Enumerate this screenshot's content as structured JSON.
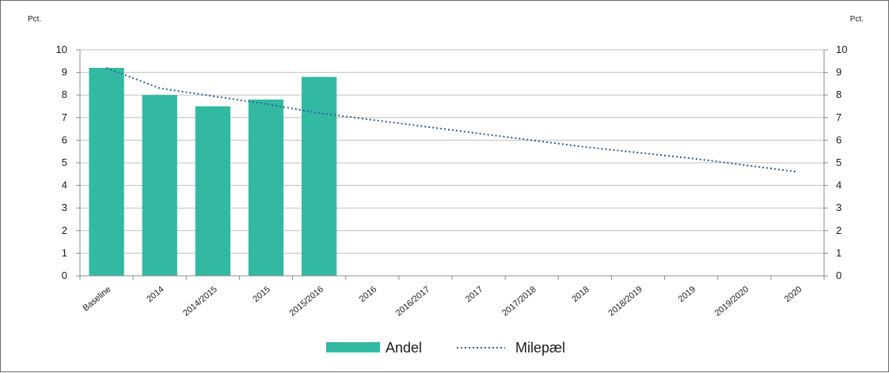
{
  "chart_data": {
    "type": "bar",
    "categories": [
      "Baseline",
      "2014",
      "2014/2015",
      "2015",
      "2015/2016",
      "2016",
      "2016/2017",
      "2017",
      "2017/2018",
      "2018",
      "2018/2019",
      "2019",
      "2019/2020",
      "2020"
    ],
    "series": [
      {
        "name": "Andel",
        "type": "bar",
        "color": "#33B9A2",
        "values": [
          9.2,
          8.0,
          7.5,
          7.8,
          8.8,
          null,
          null,
          null,
          null,
          null,
          null,
          null,
          null,
          null
        ]
      },
      {
        "name": "Milepæl",
        "type": "line",
        "style": "dotted",
        "color": "#2E5C9E",
        "values": [
          9.2,
          8.3,
          7.95,
          7.6,
          7.2,
          6.9,
          6.6,
          6.3,
          6.0,
          5.7,
          5.45,
          5.2,
          4.9,
          4.6
        ]
      }
    ],
    "title": "",
    "xlabel": "",
    "ylabel": "Pct.",
    "ylabel_right": "Pct.",
    "ylim": [
      0,
      10
    ],
    "yticks": [
      "0",
      "1",
      "2",
      "3",
      "4",
      "5",
      "6",
      "7",
      "8",
      "9",
      "10"
    ],
    "grid": true,
    "legend_position": "bottom"
  }
}
